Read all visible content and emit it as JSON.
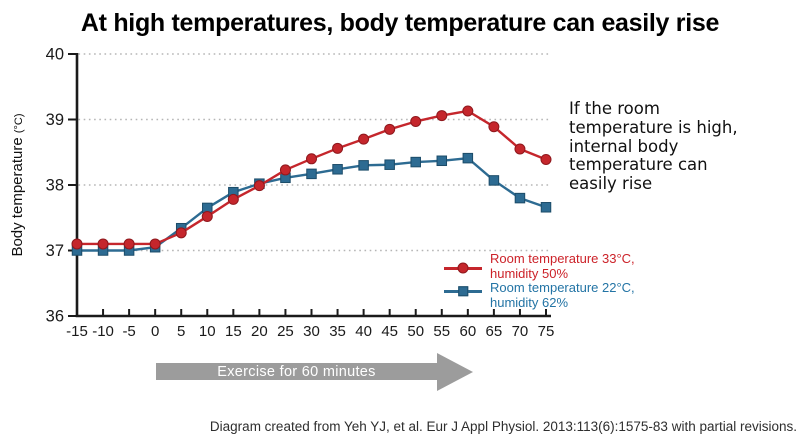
{
  "title": "At high temperatures, body temperature can easily rise",
  "y_axis": {
    "label": "Body temperature ",
    "unit": "(°C)"
  },
  "legend": {
    "items": [
      {
        "line1": "Room temperature 33°C,",
        "line2": "humidity 50%",
        "color": "#cc2229",
        "marker": "circle"
      },
      {
        "line1": "Room temperature 22°C,",
        "line2": "humidity 62%",
        "color": "#2374a5",
        "marker": "square"
      }
    ]
  },
  "annotation": {
    "lines": [
      "If the room",
      "temperature is high,",
      "internal body",
      "temperature can",
      "easily rise"
    ]
  },
  "exercise_arrow": {
    "label": "Exercise for 60 minutes",
    "color": "#9c9c9c"
  },
  "footer": "Diagram created from Yeh YJ, et al. Eur J Appl Physiol. 2013:113(6):1575-83 with partial revisions.",
  "chart_data": {
    "type": "line",
    "title": "At high temperatures, body temperature can easily rise",
    "xlabel": "",
    "ylabel": "Body temperature (°C)",
    "x": [
      -15,
      -10,
      -5,
      0,
      5,
      10,
      15,
      20,
      25,
      30,
      35,
      40,
      45,
      50,
      55,
      60,
      65,
      70,
      75
    ],
    "xlim": [
      -15,
      75
    ],
    "ylim": [
      36,
      40
    ],
    "yticks": [
      36,
      37,
      38,
      39,
      40
    ],
    "grid": "horizontal dotted lines at 37-40",
    "grid_color": "#b5b5b5",
    "axis_color": "#1a1a1a",
    "legend_position": "inside bottom-right",
    "series": [
      {
        "name": "Room temperature 33°C, humidity 50%",
        "color": "#c5262c",
        "edge_color": "#8f181d",
        "marker": "circle",
        "values": [
          37.1,
          37.1,
          37.1,
          37.1,
          37.27,
          37.52,
          37.78,
          37.99,
          38.23,
          38.4,
          38.56,
          38.7,
          38.85,
          38.97,
          39.06,
          39.13,
          38.89,
          38.55,
          38.39
        ]
      },
      {
        "name": "Room temperature 22°C, humidity 62%",
        "color": "#2d6b92",
        "edge_color": "#1c4c69",
        "marker": "square",
        "values": [
          37.0,
          37.0,
          37.0,
          37.05,
          37.34,
          37.65,
          37.89,
          38.02,
          38.11,
          38.17,
          38.24,
          38.3,
          38.31,
          38.35,
          38.37,
          38.41,
          38.07,
          37.8,
          37.66
        ]
      }
    ]
  }
}
